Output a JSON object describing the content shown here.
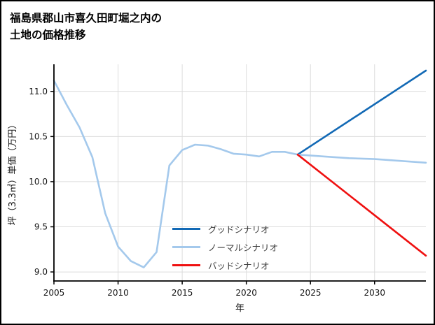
{
  "chart_data": {
    "type": "line",
    "title": "福島県郡山市喜久田町堀之内の土地の価格推移",
    "title_lines": [
      "福島県郡山市喜久田町堀之内の",
      "土地の価格推移"
    ],
    "xlabel": "年",
    "ylabel": "坪（3.3㎡）単価（万円）",
    "xlim": [
      2005,
      2034
    ],
    "ylim": [
      8.9,
      11.3
    ],
    "xticks": [
      2005,
      2010,
      2015,
      2020,
      2025,
      2030
    ],
    "yticks": [
      9.0,
      9.5,
      10.0,
      10.5,
      11.0
    ],
    "grid": true,
    "legend_position": "inside-lower-center",
    "colors": {
      "grid": "#dcdcdc",
      "axis": "#000000",
      "background": "#ffffff",
      "frame_border": "#000000"
    },
    "series": [
      {
        "name": "グッドシナリオ",
        "color": "#1269b5",
        "x": [
          2024,
          2034
        ],
        "y": [
          10.3,
          11.23
        ]
      },
      {
        "name": "ノーマルシナリオ",
        "color": "#a4c9ec",
        "x": [
          2005,
          2006,
          2007,
          2008,
          2009,
          2010,
          2011,
          2012,
          2013,
          2014,
          2015,
          2016,
          2017,
          2018,
          2019,
          2020,
          2021,
          2022,
          2023,
          2024,
          2026,
          2028,
          2030,
          2032,
          2034
        ],
        "y": [
          11.12,
          10.85,
          10.6,
          10.27,
          9.65,
          9.28,
          9.12,
          9.05,
          9.22,
          10.18,
          10.35,
          10.41,
          10.4,
          10.36,
          10.31,
          10.3,
          10.28,
          10.33,
          10.33,
          10.3,
          10.28,
          10.26,
          10.25,
          10.23,
          10.21
        ]
      },
      {
        "name": "バッドシナリオ",
        "color": "#ef1010",
        "x": [
          2024,
          2034
        ],
        "y": [
          10.3,
          9.18
        ]
      }
    ]
  }
}
